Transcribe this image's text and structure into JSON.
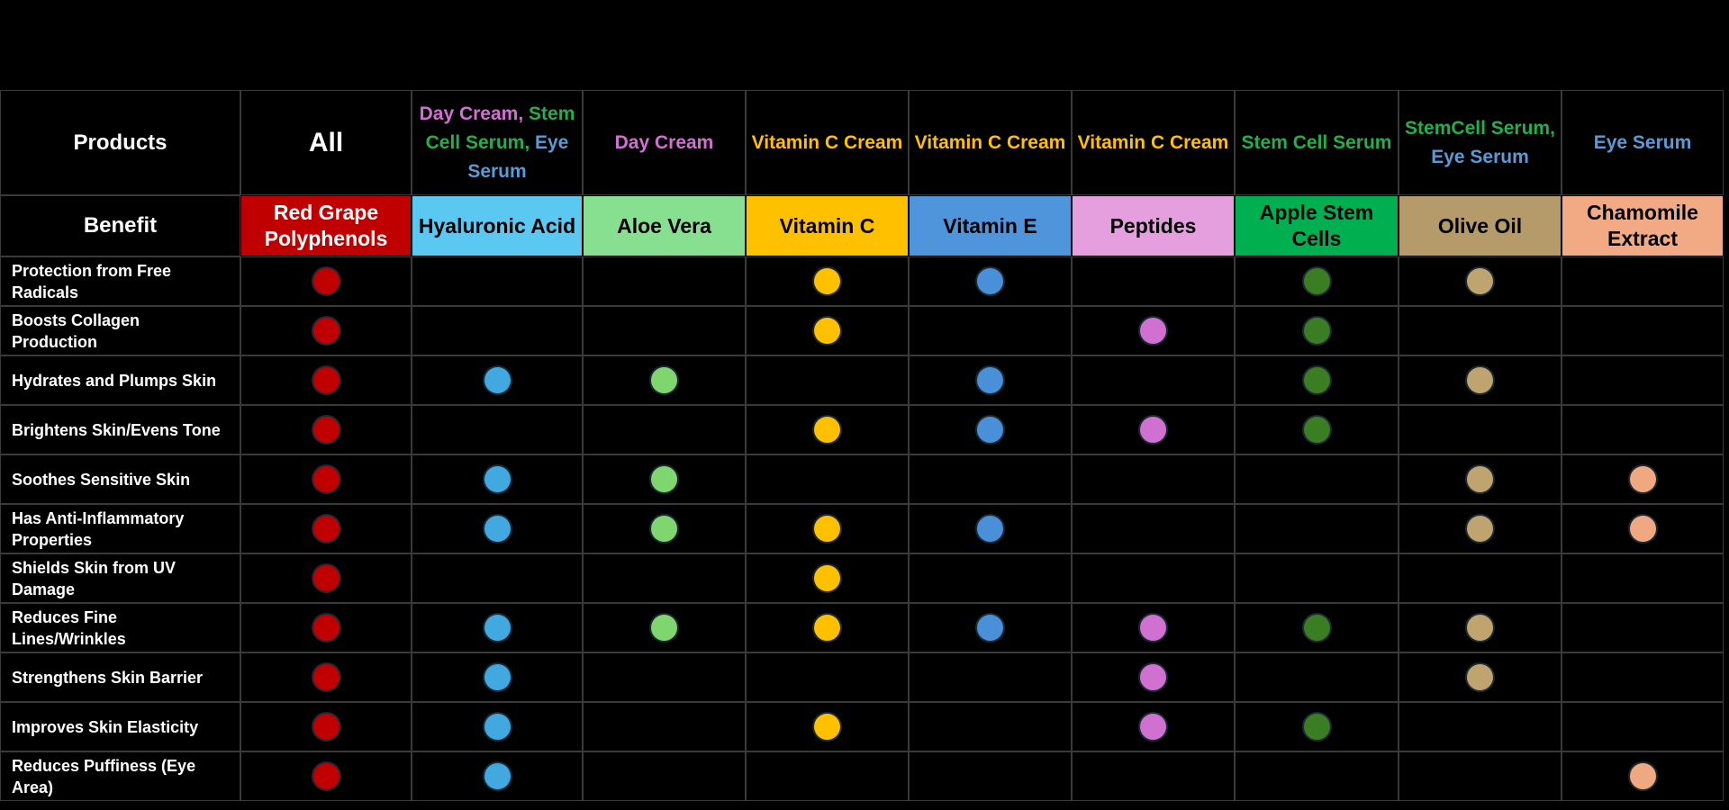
{
  "header": {
    "products_label": "Products",
    "benefit_label": "Benefit"
  },
  "products": [
    [
      {
        "text": "All",
        "color": "#ffffff"
      }
    ],
    [
      {
        "text": "Day Cream,",
        "color": "#d36fd3"
      },
      {
        "text": "Stem Cell Serum,",
        "color": "#22b04a"
      },
      {
        "text": "Eye Serum",
        "color": "#5b9bd5"
      }
    ],
    [
      {
        "text": "Day Cream",
        "color": "#d36fd3"
      }
    ],
    [
      {
        "text": "Vitamin C Cream",
        "color": "#ffc000"
      }
    ],
    [
      {
        "text": "Vitamin C Cream",
        "color": "#ffc000"
      }
    ],
    [
      {
        "text": "Vitamin C Cream",
        "color": "#ffc000"
      }
    ],
    [
      {
        "text": "Stem Cell Serum",
        "color": "#22b04a"
      }
    ],
    [
      {
        "text": "StemCell Serum,",
        "color": "#22b04a"
      },
      {
        "text": "Eye Serum",
        "color": "#5b9bd5"
      }
    ],
    [
      {
        "text": "Eye Serum",
        "color": "#5b9bd5"
      }
    ]
  ],
  "ingredients": [
    {
      "name": "Red Grape Polyphenols",
      "color": "#c00000",
      "text_color": "#ffffff",
      "dot_color": "#c00000"
    },
    {
      "name": "Hyaluronic Acid",
      "color": "#5bc8f2",
      "text_color": "#000000",
      "dot_color": "#41a8e0"
    },
    {
      "name": "Aloe Vera",
      "color": "#86e08f",
      "text_color": "#000000",
      "dot_color": "#7fd66e"
    },
    {
      "name": "Vitamin C",
      "color": "#ffc000",
      "text_color": "#000000",
      "dot_color": "#ffc000"
    },
    {
      "name": "Vitamin E",
      "color": "#4f95db",
      "text_color": "#000000",
      "dot_color": "#4a90d9"
    },
    {
      "name": "Peptides",
      "color": "#e59fdf",
      "text_color": "#000000",
      "dot_color": "#d070d0"
    },
    {
      "name": "Apple Stem Cells",
      "color": "#00b050",
      "text_color": "#000000",
      "dot_color": "#3a7d22"
    },
    {
      "name": "Olive Oil",
      "color": "#b59a6a",
      "text_color": "#000000",
      "dot_color": "#bfa46f"
    },
    {
      "name": "Chamomile Extract",
      "color": "#f2aa84",
      "text_color": "#000000",
      "dot_color": "#f0a880"
    }
  ],
  "benefits": [
    {
      "label": "Protection from Free Radicals",
      "present": [
        1,
        0,
        0,
        1,
        1,
        0,
        1,
        1,
        0
      ]
    },
    {
      "label": "Boosts Collagen Production",
      "present": [
        1,
        0,
        0,
        1,
        0,
        1,
        1,
        0,
        0
      ]
    },
    {
      "label": "Hydrates and Plumps Skin",
      "present": [
        1,
        1,
        1,
        0,
        1,
        0,
        1,
        1,
        0
      ]
    },
    {
      "label": "Brightens Skin/Evens Tone",
      "present": [
        1,
        0,
        0,
        1,
        1,
        1,
        1,
        0,
        0
      ]
    },
    {
      "label": "Soothes Sensitive Skin",
      "present": [
        1,
        1,
        1,
        0,
        0,
        0,
        0,
        1,
        1
      ]
    },
    {
      "label": "Has Anti-Inflammatory Properties",
      "present": [
        1,
        1,
        1,
        1,
        1,
        0,
        0,
        1,
        1
      ]
    },
    {
      "label": "Shields Skin from UV Damage",
      "present": [
        1,
        0,
        0,
        1,
        0,
        0,
        0,
        0,
        0
      ]
    },
    {
      "label": "Reduces Fine Lines/Wrinkles",
      "present": [
        1,
        1,
        1,
        1,
        1,
        1,
        1,
        1,
        0
      ]
    },
    {
      "label": "Strengthens Skin Barrier",
      "present": [
        1,
        1,
        0,
        0,
        0,
        1,
        0,
        1,
        0
      ]
    },
    {
      "label": "Improves Skin Elasticity",
      "present": [
        1,
        1,
        0,
        1,
        0,
        1,
        1,
        0,
        0
      ]
    },
    {
      "label": "Reduces Puffiness (Eye Area)",
      "present": [
        1,
        1,
        0,
        0,
        0,
        0,
        0,
        0,
        1
      ]
    }
  ]
}
